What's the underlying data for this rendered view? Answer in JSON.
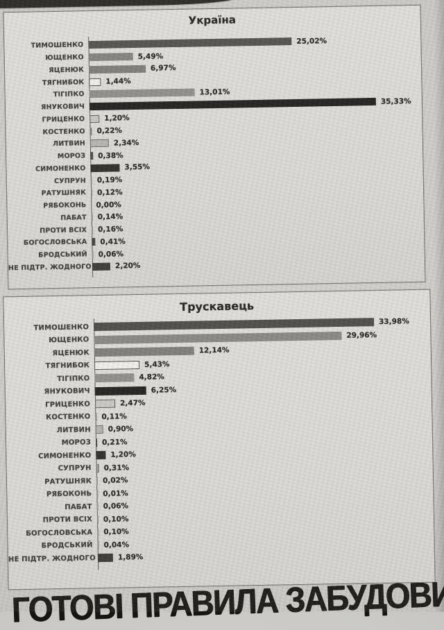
{
  "page": {
    "headline": "ГОТОВІ ПРАВИЛА ЗАБУДОВИ",
    "paper_color": "#cac9c5",
    "panel_color": "#deddd9",
    "ink_color": "#232220"
  },
  "chart_data": [
    {
      "type": "bar",
      "orientation": "horizontal",
      "title": "Україна",
      "xlabel": "",
      "ylabel": "",
      "xlim": [
        0,
        40
      ],
      "grid": false,
      "legend": false,
      "categories": [
        "ТИМОШЕНКО",
        "ЮЩЕНКО",
        "ЯЦЕНЮК",
        "ТЯГНИБОК",
        "ТІГІПКО",
        "ЯНУКОВИЧ",
        "ГРИЦЕНКО",
        "КОСТЕНКО",
        "ЛИТВИН",
        "МОРОЗ",
        "СИМОНЕНКО",
        "СУПРУН",
        "РАТУШНЯК",
        "РЯБОКОНЬ",
        "ПАБАТ",
        "ПРОТИ ВСІХ",
        "БОГОСЛОВСЬКА",
        "БРОДСЬКИЙ",
        "НЕ ПІДТР. ЖОДНОГО"
      ],
      "values": [
        25.02,
        5.49,
        6.97,
        1.44,
        13.01,
        35.33,
        1.2,
        0.22,
        2.34,
        0.38,
        3.55,
        0.19,
        0.12,
        0.0,
        0.14,
        0.16,
        0.41,
        0.06,
        2.2
      ],
      "value_labels": [
        "25,02%",
        "5,49%",
        "6,97%",
        "1,44%",
        "13,01%",
        "35,33%",
        "1,20%",
        "0,22%",
        "2,34%",
        "0,38%",
        "3,55%",
        "0,19%",
        "0,12%",
        "0,00%",
        "0,14%",
        "0,16%",
        "0,41%",
        "0,06%",
        "2,20%"
      ],
      "bar_fills": [
        "#504f4c",
        "#81807c",
        "#7c7b78",
        "#efeeea",
        "#8d8c89",
        "#1e1d1b",
        "#c7c6c2",
        "#7a7974",
        "#b4b3af",
        "#454440",
        "#2b2a27",
        "#8f8e8a",
        "#8f8e8a",
        "#9a9995",
        "#8f8e8a",
        "#8f8e8a",
        "#403f3c",
        "#8f8e8a",
        "#383734"
      ],
      "bar_borders": [
        null,
        null,
        null,
        "#4b4a47",
        null,
        null,
        "#5b5a56",
        null,
        "#6b6a66",
        null,
        null,
        null,
        null,
        null,
        null,
        null,
        null,
        null,
        null
      ],
      "bar_dither": [
        true,
        true,
        true,
        false,
        true,
        false,
        true,
        false,
        true,
        false,
        false,
        false,
        false,
        false,
        false,
        false,
        false,
        false,
        false
      ]
    },
    {
      "type": "bar",
      "orientation": "horizontal",
      "title": "Трускавець",
      "xlabel": "",
      "ylabel": "",
      "xlim": [
        0,
        40
      ],
      "grid": false,
      "legend": false,
      "categories": [
        "ТИМОШЕНКО",
        "ЮЩЕНКО",
        "ЯЦЕНЮК",
        "ТЯГНИБОК",
        "ТІГІПКО",
        "ЯНУКОВИЧ",
        "ГРИЦЕНКО",
        "КОСТЕНКО",
        "ЛИТВИН",
        "МОРОЗ",
        "СИМОНЕНКО",
        "СУПРУН",
        "РАТУШНЯК",
        "РЯБОКОНЬ",
        "ПАБАТ",
        "ПРОТИ ВСІХ",
        "БОГОСЛОВСЬКА",
        "БРОДСЬКИЙ",
        "НЕ ПІДТР. ЖОДНОГО"
      ],
      "values": [
        33.98,
        29.96,
        12.14,
        5.43,
        4.82,
        6.25,
        2.47,
        0.11,
        0.9,
        0.21,
        1.2,
        0.31,
        0.02,
        0.01,
        0.06,
        0.1,
        0.1,
        0.04,
        1.89
      ],
      "value_labels": [
        "33,98%",
        "29,96%",
        "12,14%",
        "5,43%",
        "4,82%",
        "6,25%",
        "2,47%",
        "0,11%",
        "0,90%",
        "0,21%",
        "1,20%",
        "0,31%",
        "0,02%",
        "0,01%",
        "0,06%",
        "0,10%",
        "0,10%",
        "0,04%",
        "1,89%"
      ],
      "bar_fills": [
        "#4a4946",
        "#868581",
        "#7c7b78",
        "#efeeea",
        "#8d8c89",
        "#1e1d1b",
        "#c7c6c2",
        "#7a7974",
        "#b4b3af",
        "#454440",
        "#2b2a27",
        "#a5a4a0",
        "#8f8e8a",
        "#8f8e8a",
        "#8f8e8a",
        "#8f8e8a",
        "#8f8e8a",
        "#8f8e8a",
        "#383734"
      ],
      "bar_borders": [
        null,
        null,
        null,
        "#4b4a47",
        null,
        null,
        "#5b5a56",
        null,
        "#6b6a66",
        null,
        null,
        "#6b6a66",
        null,
        null,
        null,
        null,
        null,
        null,
        null
      ],
      "bar_dither": [
        true,
        true,
        true,
        false,
        true,
        false,
        true,
        false,
        true,
        false,
        false,
        true,
        false,
        false,
        false,
        false,
        false,
        false,
        false
      ]
    }
  ]
}
